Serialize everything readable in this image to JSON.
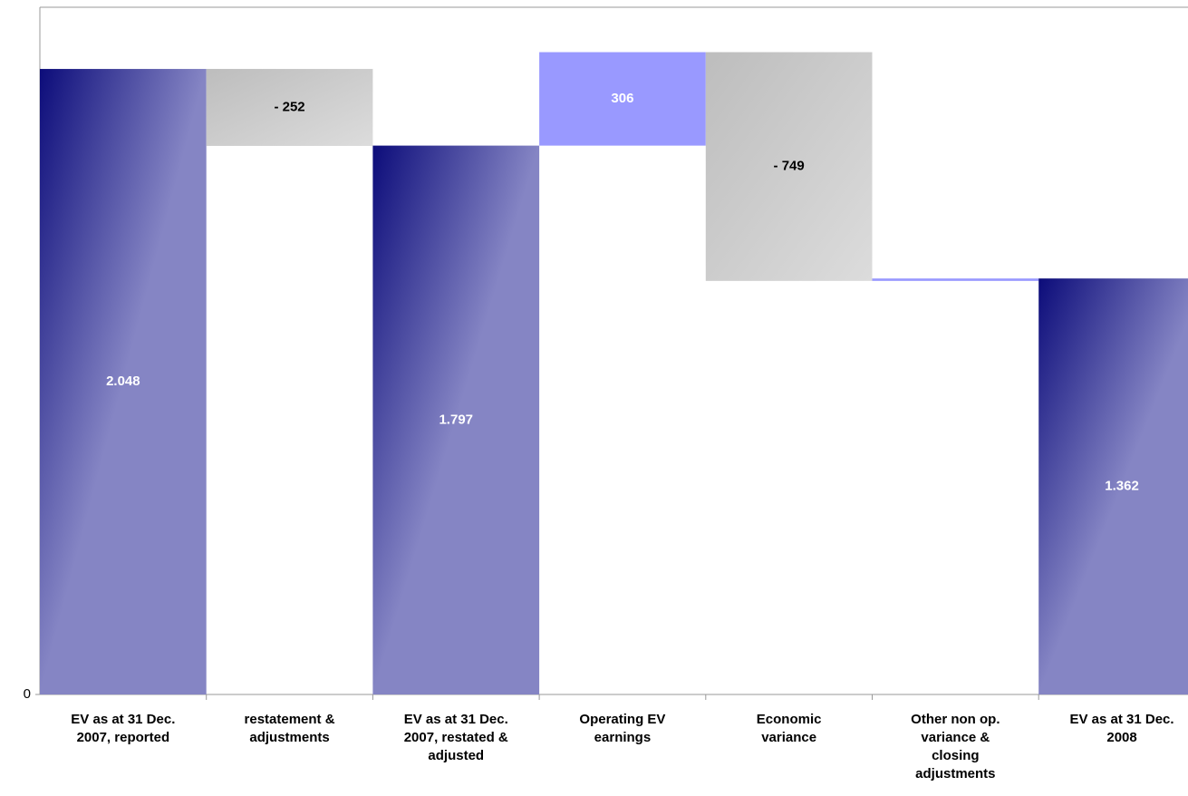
{
  "chart_data": {
    "type": "waterfall",
    "categories": [
      "EV as at 31 Dec. 2007, reported",
      "restatement & adjustments",
      "EV as at 31 Dec. 2007, restated & adjusted",
      "Operating EV earnings",
      "Economic variance",
      "Other non op. variance & closing adjustments",
      "EV as at 31 Dec. 2008"
    ],
    "values": [
      2048,
      -252,
      1797,
      306,
      -749,
      8,
      1362
    ],
    "value_labels": [
      "2.048",
      "- 252",
      "1.797",
      "306",
      "- 749",
      null,
      "1.362"
    ],
    "measures": [
      "total",
      "relative",
      "total",
      "relative",
      "relative",
      "relative",
      "total"
    ],
    "colors": {
      "total": [
        "#0c0c7a",
        "#8585c4"
      ],
      "increase": "#9999ff",
      "decrease": [
        "#bdbdbd",
        "#dcdcdc"
      ]
    },
    "ylim": [
      0,
      2250
    ],
    "yticks": [
      0
    ]
  }
}
